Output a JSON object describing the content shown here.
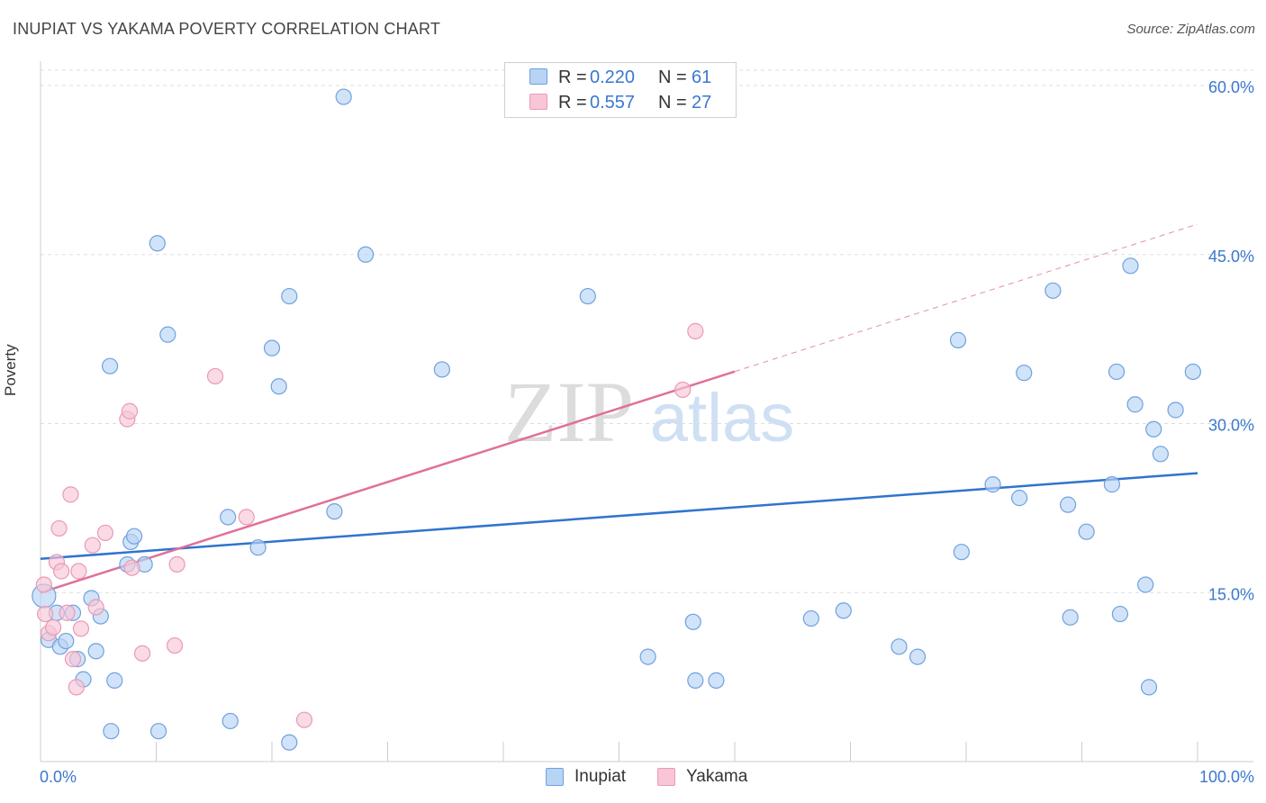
{
  "header": {
    "title": "INUPIAT VS YAKAMA POVERTY CORRELATION CHART",
    "source": "Source: ZipAtlas.com"
  },
  "watermark": {
    "zip": "ZIP",
    "atlas": "atlas"
  },
  "legend": {
    "items": [
      {
        "r_label": "R =",
        "r_value": "0.220",
        "n_label": "N =",
        "n_value": "61"
      },
      {
        "r_label": "R =",
        "r_value": "0.557",
        "n_label": "N =",
        "n_value": "27"
      }
    ]
  },
  "chart_data": {
    "type": "scatter",
    "title": "INUPIAT VS YAKAMA POVERTY CORRELATION CHART",
    "xlabel": "",
    "ylabel": "Poverty",
    "xlim": [
      0,
      100
    ],
    "ylim": [
      0,
      62
    ],
    "x_tick_labels": [
      "0.0%",
      "100.0%"
    ],
    "y_ticks": [
      15,
      30,
      45,
      60
    ],
    "y_tick_labels": [
      "15.0%",
      "30.0%",
      "45.0%",
      "60.0%"
    ],
    "colors": {
      "Inupiat": {
        "fill": "#b8d4f5",
        "stroke": "#6fa1de",
        "line": "#2f74d0"
      },
      "Yakama": {
        "fill": "#f8c6d6",
        "stroke": "#e99ab5",
        "line": "#e0709a"
      },
      "axis_text": "#3a78d0"
    },
    "series": [
      {
        "name": "Inupiat",
        "r": 0.22,
        "n": 61,
        "trend": {
          "x": [
            0,
            100
          ],
          "y": [
            18.0,
            25.6
          ],
          "dashed_from": null
        },
        "points": [
          [
            0.3,
            14.7
          ],
          [
            0.7,
            10.8
          ],
          [
            1.4,
            13.2
          ],
          [
            1.7,
            10.2
          ],
          [
            2.2,
            10.7
          ],
          [
            2.8,
            13.2
          ],
          [
            3.2,
            9.1
          ],
          [
            3.7,
            7.3
          ],
          [
            4.4,
            14.5
          ],
          [
            4.8,
            9.8
          ],
          [
            5.2,
            12.9
          ],
          [
            6.0,
            35.1
          ],
          [
            6.4,
            7.2
          ],
          [
            7.5,
            17.5
          ],
          [
            7.8,
            19.5
          ],
          [
            8.1,
            20.0
          ],
          [
            9.0,
            17.5
          ],
          [
            10.1,
            46.0
          ],
          [
            11.0,
            37.9
          ],
          [
            16.4,
            3.6
          ],
          [
            16.2,
            21.7
          ],
          [
            18.8,
            19.0
          ],
          [
            20.0,
            36.7
          ],
          [
            20.6,
            33.3
          ],
          [
            21.5,
            41.3
          ],
          [
            25.4,
            22.2
          ],
          [
            26.2,
            59.0
          ],
          [
            28.1,
            45.0
          ],
          [
            34.7,
            34.8
          ],
          [
            47.3,
            41.3
          ],
          [
            52.5,
            9.3
          ],
          [
            56.4,
            12.4
          ],
          [
            56.6,
            7.2
          ],
          [
            58.4,
            7.2
          ],
          [
            66.6,
            12.7
          ],
          [
            69.4,
            13.4
          ],
          [
            74.2,
            10.2
          ],
          [
            75.8,
            9.3
          ],
          [
            79.3,
            37.4
          ],
          [
            79.6,
            18.6
          ],
          [
            82.3,
            24.6
          ],
          [
            84.6,
            23.4
          ],
          [
            85.0,
            34.5
          ],
          [
            87.5,
            41.8
          ],
          [
            88.8,
            22.8
          ],
          [
            89.0,
            12.8
          ],
          [
            90.4,
            20.4
          ],
          [
            92.6,
            24.6
          ],
          [
            93.0,
            34.6
          ],
          [
            93.3,
            13.1
          ],
          [
            94.2,
            44.0
          ],
          [
            94.6,
            31.7
          ],
          [
            95.5,
            15.7
          ],
          [
            95.8,
            6.6
          ],
          [
            96.2,
            29.5
          ],
          [
            96.8,
            27.3
          ],
          [
            98.1,
            31.2
          ],
          [
            99.6,
            34.6
          ],
          [
            6.1,
            2.7
          ],
          [
            10.2,
            2.7
          ],
          [
            21.5,
            1.7
          ]
        ]
      },
      {
        "name": "Yakama",
        "r": 0.557,
        "n": 27,
        "trend": {
          "x": [
            0,
            100
          ],
          "y": [
            15.0,
            47.7
          ],
          "dashed_from": 60
        },
        "points": [
          [
            0.3,
            15.7
          ],
          [
            0.4,
            13.1
          ],
          [
            0.7,
            11.4
          ],
          [
            1.1,
            11.9
          ],
          [
            1.4,
            17.7
          ],
          [
            1.6,
            20.7
          ],
          [
            1.8,
            16.9
          ],
          [
            2.3,
            13.2
          ],
          [
            2.6,
            23.7
          ],
          [
            2.8,
            9.1
          ],
          [
            3.1,
            6.6
          ],
          [
            3.3,
            16.9
          ],
          [
            3.5,
            11.8
          ],
          [
            4.5,
            19.2
          ],
          [
            4.8,
            13.7
          ],
          [
            5.6,
            20.3
          ],
          [
            7.5,
            30.4
          ],
          [
            7.7,
            31.1
          ],
          [
            7.9,
            17.2
          ],
          [
            8.8,
            9.6
          ],
          [
            11.8,
            17.5
          ],
          [
            11.6,
            10.3
          ],
          [
            15.1,
            34.2
          ],
          [
            17.8,
            21.7
          ],
          [
            22.8,
            3.7
          ],
          [
            55.5,
            33.0
          ],
          [
            56.6,
            38.2
          ]
        ]
      }
    ]
  },
  "bottom_legend": {
    "items": [
      {
        "label": "Inupiat"
      },
      {
        "label": "Yakama"
      }
    ]
  }
}
